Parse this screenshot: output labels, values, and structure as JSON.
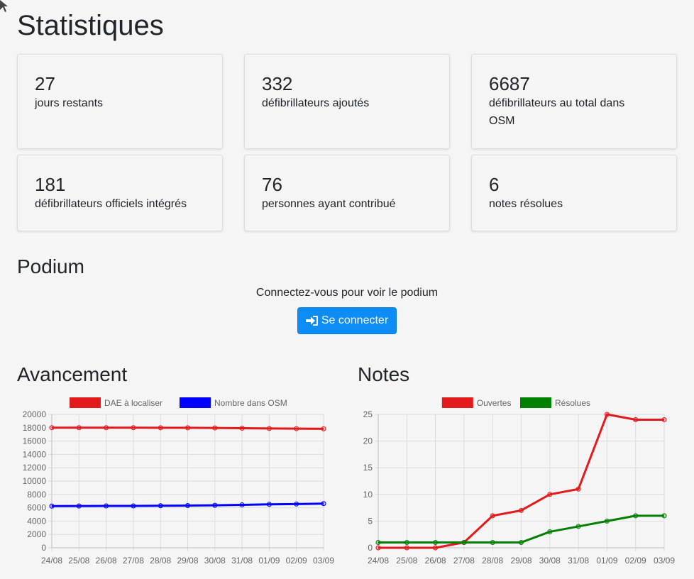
{
  "page": {
    "title": "Statistiques"
  },
  "stats": [
    {
      "value": "27",
      "label": "jours restants"
    },
    {
      "value": "332",
      "label": "défibrillateurs ajoutés"
    },
    {
      "value": "6687",
      "label": "défibrillateurs au total dans OSM"
    },
    {
      "value": "181",
      "label": "défibrillateurs officiels intégrés"
    },
    {
      "value": "76",
      "label": "personnes ayant contribué"
    },
    {
      "value": "6",
      "label": "notes résolues"
    }
  ],
  "podium": {
    "title": "Podium",
    "message": "Connectez-vous pour voir le podium",
    "login_label": "Se connecter",
    "login_icon": "sign-in-icon"
  },
  "colors": {
    "primary_button": "#0d8cf5",
    "red_series": "#e31a1c",
    "blue_series": "#0000ff",
    "green_series": "#008000"
  },
  "chart_data": [
    {
      "type": "line",
      "heading": "Avancement",
      "categories": [
        "24/08",
        "25/08",
        "26/08",
        "27/08",
        "28/08",
        "29/08",
        "30/08",
        "31/08",
        "01/09",
        "02/09",
        "03/09"
      ],
      "series": [
        {
          "name": "DAE à localiser",
          "color": "#e31a1c",
          "values": [
            18010,
            18005,
            18000,
            18000,
            17995,
            17990,
            17970,
            17930,
            17880,
            17860,
            17830
          ]
        },
        {
          "name": "Nombre dans OSM",
          "color": "#0000ff",
          "values": [
            6250,
            6260,
            6270,
            6280,
            6300,
            6330,
            6370,
            6430,
            6510,
            6560,
            6620
          ]
        }
      ],
      "yticks": [
        "0",
        "2000",
        "4000",
        "6000",
        "8000",
        "10000",
        "12000",
        "14000",
        "16000",
        "18000",
        "20000"
      ],
      "ylim": [
        0,
        20000
      ],
      "grid": true,
      "legend": "top"
    },
    {
      "type": "line",
      "heading": "Notes",
      "categories": [
        "24/08",
        "25/08",
        "26/08",
        "27/08",
        "28/08",
        "29/08",
        "30/08",
        "31/08",
        "01/09",
        "02/09",
        "03/09"
      ],
      "series": [
        {
          "name": "Ouvertes",
          "color": "#e31a1c",
          "values": [
            0,
            0,
            0,
            1,
            6,
            7,
            10,
            11,
            25,
            24,
            24
          ]
        },
        {
          "name": "Résolues",
          "color": "#008000",
          "values": [
            1,
            1,
            1,
            1,
            1,
            1,
            3,
            4,
            5,
            6,
            6
          ]
        }
      ],
      "yticks": [
        "0",
        "5",
        "10",
        "15",
        "20",
        "25"
      ],
      "ylim": [
        0,
        25
      ],
      "grid": true,
      "legend": "top"
    }
  ]
}
